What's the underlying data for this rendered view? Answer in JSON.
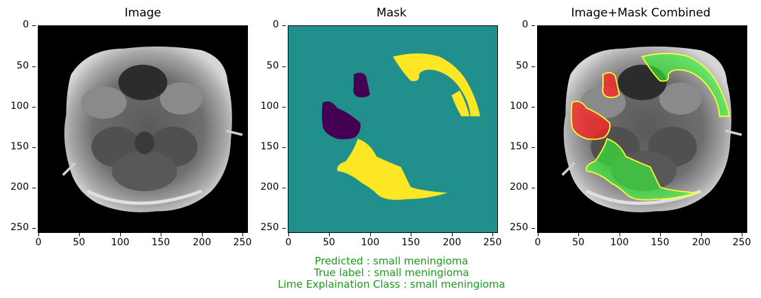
{
  "panels": [
    {
      "title": "Image"
    },
    {
      "title": "Mask"
    },
    {
      "title": "Image+Mask Combined"
    }
  ],
  "axes": {
    "x_ticks": [
      "0",
      "50",
      "100",
      "150",
      "200",
      "250"
    ],
    "y_ticks": [
      "0",
      "50",
      "100",
      "150",
      "200",
      "250"
    ]
  },
  "caption": {
    "predicted": "Predicted : small meningioma",
    "true_label": "True label : small meningioma",
    "lime_class": "Lime Explaination Class : small meningioma"
  },
  "colors": {
    "mask_background": "#21908c",
    "mask_positive": "#fde725",
    "mask_negative": "#440154",
    "overlay_positive": "#33ff33",
    "overlay_negative": "#ff2222",
    "caption_text": "#1a9a1a"
  }
}
